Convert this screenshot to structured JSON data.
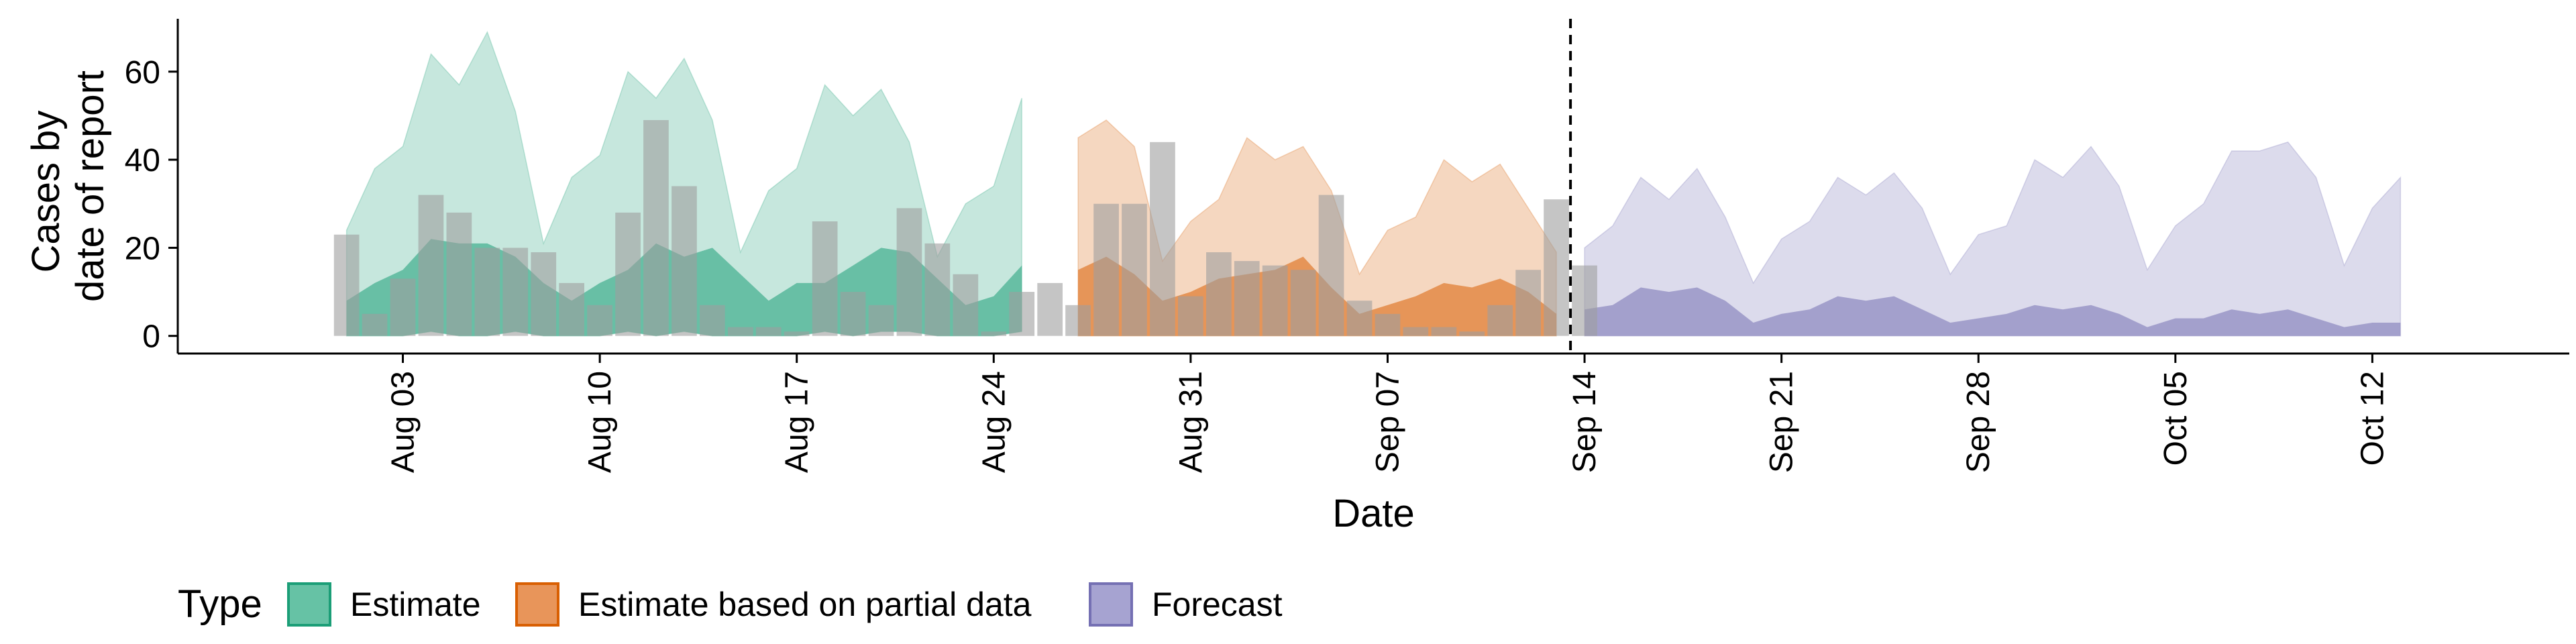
{
  "chart_data": {
    "type": "area",
    "xlabel": "Date",
    "ylabel_lines": [
      "Cases by",
      "date of report"
    ],
    "ylim": [
      -4,
      72
    ],
    "xlim": [
      "2020-07-26",
      "2020-10-19"
    ],
    "yticks": [
      0,
      20,
      40,
      60
    ],
    "xticks": [
      {
        "date": "2020-08-03",
        "label": "Aug 03"
      },
      {
        "date": "2020-08-10",
        "label": "Aug 10"
      },
      {
        "date": "2020-08-17",
        "label": "Aug 17"
      },
      {
        "date": "2020-08-24",
        "label": "Aug 24"
      },
      {
        "date": "2020-08-31",
        "label": "Aug 31"
      },
      {
        "date": "2020-09-07",
        "label": "Sep 07"
      },
      {
        "date": "2020-09-14",
        "label": "Sep 14"
      },
      {
        "date": "2020-09-21",
        "label": "Sep 21"
      },
      {
        "date": "2020-09-28",
        "label": "Sep 28"
      },
      {
        "date": "2020-10-05",
        "label": "Oct 05"
      },
      {
        "date": "2020-10-12",
        "label": "Oct 12"
      }
    ],
    "forecast_date": "2020-09-13",
    "legend": {
      "title": "Type",
      "position": "bottom",
      "entries": [
        {
          "label": "Estimate",
          "fill": "#66c2a5",
          "stroke": "#1b9e77"
        },
        {
          "label": "Estimate based on partial data",
          "fill": "#e8955a",
          "stroke": "#d95f02"
        },
        {
          "label": "Forecast",
          "fill": "#a6a3d1",
          "stroke": "#7570b3"
        }
      ]
    },
    "colors": {
      "estimate": "#1b9e77",
      "partial": "#d95f02",
      "forecast": "#7570b3",
      "bars": "#9e9e9e"
    },
    "observed_bars": {
      "start": "2020-08-01",
      "values": [
        23,
        5,
        13,
        32,
        28,
        20,
        20,
        19,
        12,
        7,
        28,
        49,
        34,
        7,
        2,
        2,
        1,
        26,
        10,
        7,
        29,
        21,
        14,
        1,
        10,
        12,
        7,
        30,
        30,
        44,
        9,
        19,
        17,
        16,
        15,
        32,
        8,
        5,
        2,
        2,
        1,
        7,
        15,
        31,
        16
      ]
    },
    "series": [
      {
        "name": "Estimate",
        "start": "2020-08-01",
        "upper_outer": [
          24,
          38,
          43,
          64,
          57,
          69,
          51,
          21,
          36,
          41,
          60,
          54,
          63,
          49,
          19,
          33,
          38,
          57,
          50,
          56,
          44,
          18,
          30,
          34,
          54
        ],
        "upper_inner": [
          8,
          12,
          15,
          22,
          21,
          21,
          18,
          12,
          8,
          12,
          15,
          21,
          18,
          20,
          14,
          8,
          12,
          12,
          16,
          20,
          19,
          13,
          7,
          9,
          16
        ],
        "lower": [
          0,
          0,
          0,
          1,
          0,
          0,
          1,
          0,
          0,
          0,
          1,
          0,
          1,
          0,
          0,
          0,
          0,
          1,
          0,
          1,
          1,
          0,
          0,
          0,
          1
        ]
      },
      {
        "name": "Estimate based on partial data",
        "start": "2020-08-27",
        "upper_outer": [
          45,
          49,
          43,
          17,
          26,
          31,
          45,
          40,
          43,
          33,
          14,
          24,
          27,
          40,
          35,
          39,
          29,
          19
        ],
        "upper_inner": [
          15,
          18,
          14,
          8,
          10,
          13,
          14,
          15,
          18,
          11,
          5,
          7,
          9,
          12,
          11,
          13,
          10,
          5
        ],
        "lower": [
          0,
          0,
          0,
          0,
          0,
          0,
          0,
          0,
          0,
          0,
          0,
          0,
          0,
          0,
          0,
          0,
          0,
          0
        ]
      },
      {
        "name": "Forecast",
        "start": "2020-09-14",
        "upper_outer": [
          20,
          25,
          36,
          31,
          38,
          27,
          12,
          22,
          26,
          36,
          32,
          37,
          29,
          14,
          23,
          25,
          40,
          36,
          43,
          34,
          15,
          25,
          30,
          42,
          42,
          44,
          36,
          16,
          29,
          36
        ],
        "upper_inner": [
          6,
          7,
          11,
          10,
          11,
          8,
          3,
          5,
          6,
          9,
          8,
          9,
          6,
          3,
          4,
          5,
          7,
          6,
          7,
          5,
          2,
          4,
          4,
          6,
          5,
          6,
          4,
          2,
          3,
          3
        ],
        "lower": [
          0,
          0,
          0,
          0,
          0,
          0,
          0,
          0,
          0,
          0,
          0,
          0,
          0,
          0,
          0,
          0,
          0,
          0,
          0,
          0,
          0,
          0,
          0,
          0,
          0,
          0,
          0,
          0,
          0,
          0
        ]
      }
    ]
  }
}
